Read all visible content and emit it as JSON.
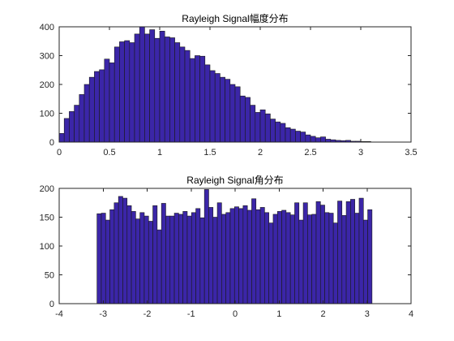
{
  "figure": {
    "background": "#ffffff"
  },
  "chart_data": [
    {
      "type": "bar",
      "title": "Rayleigh Signal幅度分布",
      "xlabel": "",
      "ylabel": "",
      "xlim": [
        0,
        3.5
      ],
      "ylim": [
        0,
        400
      ],
      "xticks": [
        "0",
        "0.5",
        "1",
        "1.5",
        "2",
        "2.5",
        "3",
        "3.5"
      ],
      "yticks": [
        "0",
        "100",
        "200",
        "300",
        "400"
      ],
      "bar_color": "#3b26a8",
      "edge_color": "#1a1a1a",
      "bin_start": 0.0,
      "bin_width": 0.05,
      "values": [
        30,
        82,
        106,
        128,
        165,
        200,
        225,
        245,
        251,
        288,
        275,
        330,
        348,
        352,
        345,
        375,
        400,
        375,
        390,
        360,
        385,
        365,
        362,
        345,
        330,
        318,
        290,
        300,
        298,
        268,
        248,
        238,
        225,
        218,
        200,
        192,
        160,
        155,
        128,
        103,
        112,
        98,
        80,
        70,
        65,
        50,
        45,
        38,
        35,
        25,
        20,
        15,
        18,
        10,
        8,
        6,
        5,
        6,
        3,
        3,
        2,
        2
      ]
    },
    {
      "type": "bar",
      "title": "Rayleigh Signal角分布",
      "xlabel": "",
      "ylabel": "",
      "xlim": [
        -4,
        4
      ],
      "ylim": [
        0,
        200
      ],
      "xticks": [
        "-4",
        "-3",
        "-2",
        "-1",
        "0",
        "1",
        "2",
        "3",
        "4"
      ],
      "yticks": [
        "0",
        "50",
        "100",
        "150",
        "200"
      ],
      "bar_color": "#3b26a8",
      "edge_color": "#1a1a1a",
      "bin_start": -3.14,
      "bin_width": 0.0977,
      "values": [
        156,
        157,
        145,
        163,
        175,
        186,
        183,
        170,
        160,
        147,
        158,
        152,
        143,
        170,
        128,
        174,
        152,
        152,
        157,
        155,
        160,
        152,
        158,
        165,
        149,
        198,
        167,
        150,
        175,
        155,
        158,
        165,
        168,
        165,
        170,
        162,
        182,
        163,
        167,
        158,
        140,
        155,
        160,
        162,
        158,
        154,
        175,
        145,
        175,
        154,
        155,
        177,
        171,
        158,
        157,
        140,
        178,
        153,
        177,
        181,
        157,
        183,
        145,
        163
      ]
    }
  ]
}
